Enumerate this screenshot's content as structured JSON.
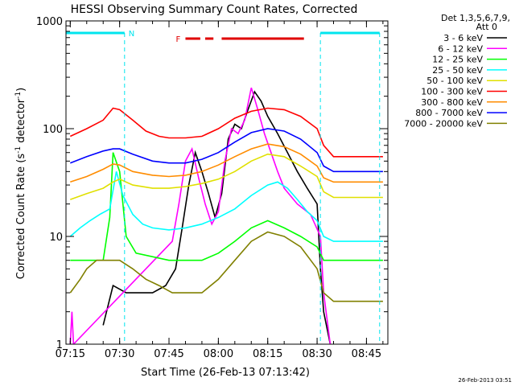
{
  "chart_data": {
    "type": "line",
    "title": "HESSI Observing Summary Count Rates, Corrected",
    "xlabel": "Start Time (26-Feb-13 07:13:42)",
    "ylabel_main": "Corrected Count Rate (s",
    "ylabel_sup1": "-1",
    "ylabel_mid": " detector",
    "ylabel_sup2": "-1",
    "ylabel_end": ")",
    "y_scale": "log",
    "ylim": [
      1,
      1000
    ],
    "xlim": [
      "07:13:42",
      "08:51:30"
    ],
    "x_tick_labels": [
      "07:15",
      "07:30",
      "07:45",
      "08:00",
      "08:15",
      "08:30",
      "08:45"
    ],
    "y_tick_labels": [
      "1",
      "10",
      "100",
      "1000"
    ],
    "legend_header": [
      "Det 1,3,5,6,7,9,",
      "Att 0"
    ],
    "legend_position": "right-outside",
    "timestamp": "26-Feb-2013 03:51",
    "annotations": {
      "night_marker": "N",
      "flare_marker": "F",
      "night_intervals": [
        [
          "07:13:42",
          "07:31:30"
        ],
        [
          "08:31:00",
          "08:49:00"
        ]
      ],
      "flare_intervals": [
        [
          "07:50:00",
          "07:54:30"
        ],
        [
          "07:56:00",
          "07:58:30"
        ],
        [
          "08:01:00",
          "08:26:00"
        ]
      ],
      "night_color": "#00e5ee",
      "flare_color": "#e00000"
    },
    "series": [
      {
        "name": "3 - 6 keV",
        "color": "#000000",
        "points": [
          [
            "07:25:00",
            1.5
          ],
          [
            "07:28:00",
            3.5
          ],
          [
            "07:32:00",
            3
          ],
          [
            "07:36:00",
            3
          ],
          [
            "07:40:00",
            3
          ],
          [
            "07:44:00",
            3.5
          ],
          [
            "07:47:00",
            5
          ],
          [
            "07:49:00",
            12
          ],
          [
            "07:51:00",
            30
          ],
          [
            "07:53:00",
            60
          ],
          [
            "07:55:00",
            40
          ],
          [
            "07:57:00",
            25
          ],
          [
            "07:59:00",
            15
          ],
          [
            "08:01:00",
            25
          ],
          [
            "08:03:00",
            80
          ],
          [
            "08:05:00",
            110
          ],
          [
            "08:07:00",
            100
          ],
          [
            "08:09:00",
            150
          ],
          [
            "08:11:00",
            220
          ],
          [
            "08:13:00",
            180
          ],
          [
            "08:15:00",
            130
          ],
          [
            "08:18:00",
            90
          ],
          [
            "08:21:00",
            60
          ],
          [
            "08:24:00",
            40
          ],
          [
            "08:27:00",
            28
          ],
          [
            "08:30:00",
            20
          ],
          [
            "08:31:00",
            5
          ],
          [
            "08:32:00",
            2
          ],
          [
            "08:34:00",
            1
          ]
        ]
      },
      {
        "name": "6 - 12 keV",
        "color": "#ff00ff",
        "points": [
          [
            "07:15:00",
            1
          ],
          [
            "07:15:30",
            2
          ],
          [
            "07:16:00",
            1
          ],
          [
            "07:46:00",
            9
          ],
          [
            "07:48:00",
            20
          ],
          [
            "07:50:00",
            50
          ],
          [
            "07:52:00",
            65
          ],
          [
            "07:54:00",
            35
          ],
          [
            "07:56:00",
            20
          ],
          [
            "07:58:00",
            13
          ],
          [
            "08:00:00",
            17
          ],
          [
            "08:02:00",
            50
          ],
          [
            "08:04:00",
            100
          ],
          [
            "08:06:00",
            90
          ],
          [
            "08:08:00",
            120
          ],
          [
            "08:10:00",
            240
          ],
          [
            "08:12:00",
            150
          ],
          [
            "08:14:00",
            90
          ],
          [
            "08:16:00",
            60
          ],
          [
            "08:18:00",
            40
          ],
          [
            "08:20:00",
            28
          ],
          [
            "08:24:00",
            20
          ],
          [
            "08:28:00",
            16
          ],
          [
            "08:31:00",
            10
          ],
          [
            "08:32:00",
            3
          ],
          [
            "08:34:00",
            1
          ]
        ]
      },
      {
        "name": "12 - 25 keV",
        "color": "#00ff00",
        "points": [
          [
            "07:15:00",
            6
          ],
          [
            "07:20:00",
            6
          ],
          [
            "07:25:00",
            6
          ],
          [
            "07:27:00",
            15
          ],
          [
            "07:28:00",
            60
          ],
          [
            "07:30:00",
            40
          ],
          [
            "07:32:00",
            10
          ],
          [
            "07:35:00",
            7
          ],
          [
            "07:45:00",
            6
          ],
          [
            "07:55:00",
            6
          ],
          [
            "08:00:00",
            7
          ],
          [
            "08:05:00",
            9
          ],
          [
            "08:10:00",
            12
          ],
          [
            "08:15:00",
            14
          ],
          [
            "08:20:00",
            12
          ],
          [
            "08:25:00",
            10
          ],
          [
            "08:30:00",
            8
          ],
          [
            "08:32:00",
            6
          ],
          [
            "08:35:00",
            6
          ],
          [
            "08:50:00",
            6
          ]
        ]
      },
      {
        "name": "25 - 50 keV",
        "color": "#00ffff",
        "points": [
          [
            "07:15:00",
            10
          ],
          [
            "07:18:00",
            12
          ],
          [
            "07:21:00",
            14
          ],
          [
            "07:24:00",
            16
          ],
          [
            "07:27:00",
            18
          ],
          [
            "07:29:00",
            40
          ],
          [
            "07:31:00",
            24
          ],
          [
            "07:34:00",
            16
          ],
          [
            "07:37:00",
            13
          ],
          [
            "07:40:00",
            12
          ],
          [
            "07:45:00",
            11.5
          ],
          [
            "07:50:00",
            12
          ],
          [
            "07:55:00",
            13
          ],
          [
            "08:00:00",
            15
          ],
          [
            "08:05:00",
            18
          ],
          [
            "08:10:00",
            24
          ],
          [
            "08:15:00",
            30
          ],
          [
            "08:18:00",
            32
          ],
          [
            "08:21:00",
            28
          ],
          [
            "08:24:00",
            22
          ],
          [
            "08:27:00",
            17
          ],
          [
            "08:30:00",
            14
          ],
          [
            "08:32:00",
            10
          ],
          [
            "08:35:00",
            9
          ],
          [
            "08:50:00",
            9
          ]
        ]
      },
      {
        "name": "50 - 100 keV",
        "color": "#e0e000",
        "points": [
          [
            "07:15:00",
            22
          ],
          [
            "07:20:00",
            25
          ],
          [
            "07:25:00",
            28
          ],
          [
            "07:28:00",
            32
          ],
          [
            "07:30:00",
            34
          ],
          [
            "07:34:00",
            30
          ],
          [
            "07:40:00",
            28
          ],
          [
            "07:45:00",
            28
          ],
          [
            "07:50:00",
            29
          ],
          [
            "07:55:00",
            31
          ],
          [
            "08:00:00",
            34
          ],
          [
            "08:05:00",
            40
          ],
          [
            "08:10:00",
            50
          ],
          [
            "08:15:00",
            58
          ],
          [
            "08:20:00",
            55
          ],
          [
            "08:25:00",
            45
          ],
          [
            "08:30:00",
            36
          ],
          [
            "08:32:00",
            26
          ],
          [
            "08:35:00",
            23
          ],
          [
            "08:50:00",
            23
          ]
        ]
      },
      {
        "name": "100 - 300 keV",
        "color": "#ff0000",
        "points": [
          [
            "07:15:00",
            85
          ],
          [
            "07:20:00",
            100
          ],
          [
            "07:25:00",
            120
          ],
          [
            "07:28:00",
            155
          ],
          [
            "07:30:00",
            150
          ],
          [
            "07:34:00",
            120
          ],
          [
            "07:38:00",
            95
          ],
          [
            "07:42:00",
            85
          ],
          [
            "07:45:00",
            82
          ],
          [
            "07:50:00",
            82
          ],
          [
            "07:55:00",
            85
          ],
          [
            "08:00:00",
            100
          ],
          [
            "08:05:00",
            125
          ],
          [
            "08:10:00",
            145
          ],
          [
            "08:15:00",
            155
          ],
          [
            "08:20:00",
            150
          ],
          [
            "08:25:00",
            130
          ],
          [
            "08:30:00",
            100
          ],
          [
            "08:32:00",
            70
          ],
          [
            "08:35:00",
            55
          ],
          [
            "08:50:00",
            55
          ]
        ]
      },
      {
        "name": "300 - 800 keV",
        "color": "#ff8c00",
        "points": [
          [
            "07:15:00",
            32
          ],
          [
            "07:20:00",
            36
          ],
          [
            "07:25:00",
            42
          ],
          [
            "07:28:00",
            47
          ],
          [
            "07:30:00",
            46
          ],
          [
            "07:34:00",
            40
          ],
          [
            "07:40:00",
            37
          ],
          [
            "07:45:00",
            36
          ],
          [
            "07:50:00",
            37
          ],
          [
            "07:55:00",
            40
          ],
          [
            "08:00:00",
            46
          ],
          [
            "08:05:00",
            55
          ],
          [
            "08:10:00",
            65
          ],
          [
            "08:15:00",
            72
          ],
          [
            "08:20:00",
            68
          ],
          [
            "08:25:00",
            58
          ],
          [
            "08:30:00",
            45
          ],
          [
            "08:32:00",
            35
          ],
          [
            "08:35:00",
            32
          ],
          [
            "08:50:00",
            32
          ]
        ]
      },
      {
        "name": "800 - 7000 keV",
        "color": "#0000ff",
        "points": [
          [
            "07:15:00",
            48
          ],
          [
            "07:20:00",
            55
          ],
          [
            "07:25:00",
            62
          ],
          [
            "07:28:00",
            65
          ],
          [
            "07:30:00",
            65
          ],
          [
            "07:34:00",
            58
          ],
          [
            "07:40:00",
            50
          ],
          [
            "07:45:00",
            48
          ],
          [
            "07:50:00",
            48
          ],
          [
            "07:55:00",
            52
          ],
          [
            "08:00:00",
            60
          ],
          [
            "08:05:00",
            75
          ],
          [
            "08:10:00",
            92
          ],
          [
            "08:15:00",
            100
          ],
          [
            "08:20:00",
            95
          ],
          [
            "08:25:00",
            80
          ],
          [
            "08:30:00",
            60
          ],
          [
            "08:32:00",
            45
          ],
          [
            "08:35:00",
            40
          ],
          [
            "08:50:00",
            40
          ]
        ]
      },
      {
        "name": "7000 - 20000 keV",
        "color": "#808000",
        "points": [
          [
            "07:15:00",
            3
          ],
          [
            "07:18:00",
            4
          ],
          [
            "07:20:00",
            5
          ],
          [
            "07:23:00",
            6
          ],
          [
            "07:25:00",
            6
          ],
          [
            "07:30:00",
            6
          ],
          [
            "07:34:00",
            5
          ],
          [
            "07:38:00",
            4
          ],
          [
            "07:42:00",
            3.5
          ],
          [
            "07:46:00",
            3
          ],
          [
            "07:50:00",
            3
          ],
          [
            "07:55:00",
            3
          ],
          [
            "08:00:00",
            4
          ],
          [
            "08:05:00",
            6
          ],
          [
            "08:10:00",
            9
          ],
          [
            "08:15:00",
            11
          ],
          [
            "08:20:00",
            10
          ],
          [
            "08:25:00",
            8
          ],
          [
            "08:30:00",
            5
          ],
          [
            "08:32:00",
            3
          ],
          [
            "08:35:00",
            2.5
          ],
          [
            "08:50:00",
            2.5
          ]
        ]
      }
    ]
  }
}
